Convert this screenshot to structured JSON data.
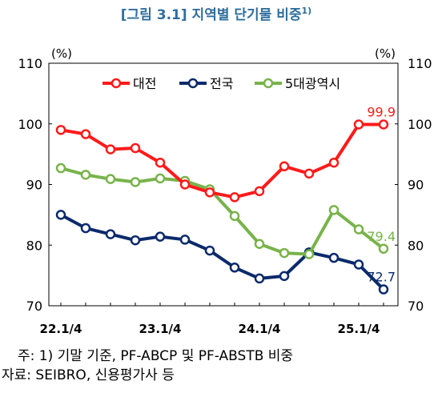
{
  "chart_data": {
    "type": "line",
    "title": "[그림 3.1] 지역별 단기물 비중",
    "title_superscript": "1)",
    "y_unit_left": "(%)",
    "y_unit_right": "(%)",
    "ylim": [
      70,
      110
    ],
    "yticks": [
      70,
      80,
      90,
      100,
      110
    ],
    "x": [
      "22.1/4",
      "22.2/4",
      "22.3/4",
      "22.4/4",
      "23.1/4",
      "23.2/4",
      "23.3/4",
      "23.4/4",
      "24.1/4",
      "24.2/4",
      "24.3/4",
      "24.4/4",
      "25.1/4",
      "25.2/4"
    ],
    "xtick_labels": [
      "22.1/4",
      "23.1/4",
      "24.1/4",
      "25.1/4"
    ],
    "grid": false,
    "legend_position": "top",
    "series": [
      {
        "name": "대전",
        "color": "#ff1a1a",
        "values": [
          99.0,
          98.3,
          95.8,
          96.0,
          93.6,
          90.0,
          88.7,
          87.9,
          88.9,
          93.0,
          91.8,
          93.6,
          99.9,
          99.9
        ],
        "end_label": "99.9"
      },
      {
        "name": "전국",
        "color": "#0b2a6b",
        "values": [
          85.0,
          82.8,
          81.8,
          80.8,
          81.4,
          80.9,
          79.1,
          76.3,
          74.5,
          74.9,
          78.8,
          77.9,
          76.8,
          72.7
        ],
        "end_label": "72.7"
      },
      {
        "name": "5대광역시",
        "color": "#78b34a",
        "values": [
          92.7,
          91.6,
          90.9,
          90.4,
          91.0,
          90.6,
          89.2,
          84.8,
          80.2,
          78.7,
          78.5,
          85.8,
          82.6,
          79.4
        ],
        "end_label": "79.4"
      }
    ]
  },
  "notes": {
    "line1": "주: 1) 기말 기준, PF-ABCP 및 PF-ABSTB 비중",
    "line2": "자료: SEIBRO, 신용평가사 등"
  }
}
